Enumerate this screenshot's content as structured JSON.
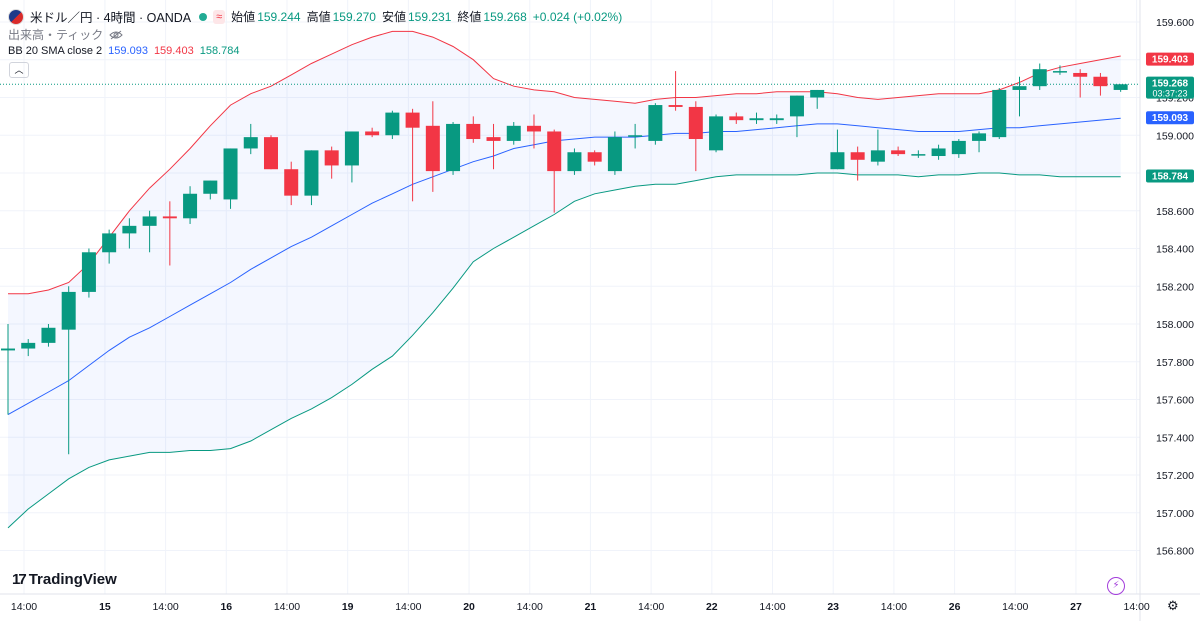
{
  "header": {
    "symbol": "米ドル／円 · 4時間 · OANDA",
    "open_label": "始値",
    "open": "159.244",
    "high_label": "高値",
    "high": "159.270",
    "low_label": "安値",
    "low": "159.231",
    "close_label": "終値",
    "close": "159.268",
    "change": "+0.024 (+0.02%)"
  },
  "volume_label": "出来高・ティック",
  "indicator": {
    "name": "BB 20 SMA close 2",
    "basis": "159.093",
    "upper": "159.403",
    "lower": "158.784"
  },
  "price_tags": {
    "upper": "159.403",
    "last": "159.268",
    "countdown": "03:37:23",
    "basis": "159.093",
    "lower": "158.784"
  },
  "branding": "TradingView",
  "colors": {
    "up": "#089981",
    "down": "#f23645",
    "upper": "#f23645",
    "basis": "#2962ff",
    "lower": "#089981"
  },
  "chart_data": {
    "type": "candlestick",
    "ylim": [
      156.75,
      159.7
    ],
    "yticks": [
      "156.800",
      "157.000",
      "157.200",
      "157.400",
      "157.600",
      "157.800",
      "158.000",
      "158.200",
      "158.400",
      "158.600",
      "158.800",
      "159.000",
      "159.200",
      "159.400",
      "159.600"
    ],
    "xticks": [
      {
        "label": "14:00",
        "i": 0
      },
      {
        "label": "15",
        "i": 4
      },
      {
        "label": "14:00",
        "i": 7
      },
      {
        "label": "16",
        "i": 10
      },
      {
        "label": "14:00",
        "i": 13
      },
      {
        "label": "19",
        "i": 16
      },
      {
        "label": "14:00",
        "i": 19
      },
      {
        "label": "20",
        "i": 22
      },
      {
        "label": "14:00",
        "i": 25
      },
      {
        "label": "21",
        "i": 28
      },
      {
        "label": "14:00",
        "i": 31
      },
      {
        "label": "22",
        "i": 34
      },
      {
        "label": "14:00",
        "i": 37
      },
      {
        "label": "23",
        "i": 40
      },
      {
        "label": "14:00",
        "i": 43
      },
      {
        "label": "26",
        "i": 46
      },
      {
        "label": "14:00",
        "i": 49
      },
      {
        "label": "27",
        "i": 52
      },
      {
        "label": "14:00",
        "i": 55
      }
    ],
    "candles": [
      {
        "o": 157.86,
        "h": 158.0,
        "l": 157.52,
        "c": 157.87
      },
      {
        "o": 157.87,
        "h": 157.92,
        "l": 157.83,
        "c": 157.9
      },
      {
        "o": 157.9,
        "h": 158.0,
        "l": 157.88,
        "c": 157.98
      },
      {
        "o": 157.97,
        "h": 158.2,
        "l": 157.31,
        "c": 158.17
      },
      {
        "o": 158.17,
        "h": 158.4,
        "l": 158.14,
        "c": 158.38
      },
      {
        "o": 158.38,
        "h": 158.5,
        "l": 158.32,
        "c": 158.48
      },
      {
        "o": 158.48,
        "h": 158.56,
        "l": 158.4,
        "c": 158.52
      },
      {
        "o": 158.52,
        "h": 158.6,
        "l": 158.38,
        "c": 158.57
      },
      {
        "o": 158.57,
        "h": 158.65,
        "l": 158.31,
        "c": 158.56
      },
      {
        "o": 158.56,
        "h": 158.73,
        "l": 158.53,
        "c": 158.69
      },
      {
        "o": 158.69,
        "h": 158.76,
        "l": 158.66,
        "c": 158.76
      },
      {
        "o": 158.66,
        "h": 158.93,
        "l": 158.61,
        "c": 158.93
      },
      {
        "o": 158.93,
        "h": 159.06,
        "l": 158.9,
        "c": 158.99
      },
      {
        "o": 158.99,
        "h": 159.0,
        "l": 158.82,
        "c": 158.82
      },
      {
        "o": 158.82,
        "h": 158.86,
        "l": 158.63,
        "c": 158.68
      },
      {
        "o": 158.68,
        "h": 158.92,
        "l": 158.63,
        "c": 158.92
      },
      {
        "o": 158.92,
        "h": 158.94,
        "l": 158.77,
        "c": 158.84
      },
      {
        "o": 158.84,
        "h": 159.02,
        "l": 158.75,
        "c": 159.02
      },
      {
        "o": 159.02,
        "h": 159.04,
        "l": 158.99,
        "c": 159.0
      },
      {
        "o": 159.0,
        "h": 159.13,
        "l": 158.98,
        "c": 159.12
      },
      {
        "o": 159.12,
        "h": 159.14,
        "l": 158.65,
        "c": 159.04
      },
      {
        "o": 159.05,
        "h": 159.18,
        "l": 158.7,
        "c": 158.81
      },
      {
        "o": 158.81,
        "h": 159.07,
        "l": 158.79,
        "c": 159.06
      },
      {
        "o": 159.06,
        "h": 159.1,
        "l": 158.96,
        "c": 158.98
      },
      {
        "o": 158.99,
        "h": 159.06,
        "l": 158.82,
        "c": 158.97
      },
      {
        "o": 158.97,
        "h": 159.07,
        "l": 158.95,
        "c": 159.05
      },
      {
        "o": 159.05,
        "h": 159.11,
        "l": 158.93,
        "c": 159.02
      },
      {
        "o": 159.02,
        "h": 159.03,
        "l": 158.59,
        "c": 158.81
      },
      {
        "o": 158.81,
        "h": 158.93,
        "l": 158.79,
        "c": 158.91
      },
      {
        "o": 158.91,
        "h": 158.92,
        "l": 158.84,
        "c": 158.86
      },
      {
        "o": 158.81,
        "h": 159.02,
        "l": 158.79,
        "c": 158.99
      },
      {
        "o": 159.0,
        "h": 159.06,
        "l": 158.93,
        "c": 159.0
      },
      {
        "o": 158.97,
        "h": 159.17,
        "l": 158.95,
        "c": 159.16
      },
      {
        "o": 159.16,
        "h": 159.34,
        "l": 159.13,
        "c": 159.15
      },
      {
        "o": 159.15,
        "h": 159.18,
        "l": 158.81,
        "c": 158.98
      },
      {
        "o": 158.92,
        "h": 159.11,
        "l": 158.91,
        "c": 159.1
      },
      {
        "o": 159.1,
        "h": 159.12,
        "l": 159.06,
        "c": 159.08
      },
      {
        "o": 159.08,
        "h": 159.12,
        "l": 159.06,
        "c": 159.09
      },
      {
        "o": 159.08,
        "h": 159.11,
        "l": 159.06,
        "c": 159.09
      },
      {
        "o": 159.1,
        "h": 159.21,
        "l": 158.99,
        "c": 159.21
      },
      {
        "o": 159.2,
        "h": 159.24,
        "l": 159.14,
        "c": 159.24
      },
      {
        "o": 158.82,
        "h": 159.03,
        "l": 158.82,
        "c": 158.91
      },
      {
        "o": 158.91,
        "h": 158.94,
        "l": 158.76,
        "c": 158.87
      },
      {
        "o": 158.86,
        "h": 159.03,
        "l": 158.84,
        "c": 158.92
      },
      {
        "o": 158.92,
        "h": 158.94,
        "l": 158.89,
        "c": 158.9
      },
      {
        "o": 158.9,
        "h": 158.92,
        "l": 158.88,
        "c": 158.9
      },
      {
        "o": 158.89,
        "h": 158.95,
        "l": 158.87,
        "c": 158.93
      },
      {
        "o": 158.9,
        "h": 158.98,
        "l": 158.88,
        "c": 158.97
      },
      {
        "o": 158.97,
        "h": 159.02,
        "l": 158.91,
        "c": 159.01
      },
      {
        "o": 158.99,
        "h": 159.25,
        "l": 158.98,
        "c": 159.24
      },
      {
        "o": 159.24,
        "h": 159.31,
        "l": 159.1,
        "c": 159.26
      },
      {
        "o": 159.26,
        "h": 159.38,
        "l": 159.24,
        "c": 159.35
      },
      {
        "o": 159.34,
        "h": 159.37,
        "l": 159.32,
        "c": 159.34
      },
      {
        "o": 159.33,
        "h": 159.35,
        "l": 159.2,
        "c": 159.31
      },
      {
        "o": 159.31,
        "h": 159.33,
        "l": 159.21,
        "c": 159.26
      },
      {
        "o": 159.24,
        "h": 159.27,
        "l": 159.23,
        "c": 159.27
      }
    ],
    "bb_upper": [
      158.16,
      158.16,
      158.18,
      158.22,
      158.32,
      158.46,
      158.6,
      158.72,
      158.82,
      158.93,
      159.05,
      159.16,
      159.22,
      159.26,
      159.32,
      159.38,
      159.43,
      159.48,
      159.52,
      159.55,
      159.55,
      159.52,
      159.47,
      159.4,
      159.3,
      159.26,
      159.24,
      159.23,
      159.2,
      159.19,
      159.18,
      159.17,
      159.19,
      159.2,
      159.2,
      159.21,
      159.22,
      159.22,
      159.23,
      159.23,
      159.23,
      159.22,
      159.2,
      159.19,
      159.2,
      159.21,
      159.22,
      159.22,
      159.22,
      159.24,
      159.28,
      159.33,
      159.36,
      159.38,
      159.4,
      159.42
    ],
    "bb_basis": [
      157.52,
      157.58,
      157.64,
      157.7,
      157.78,
      157.86,
      157.93,
      157.98,
      158.04,
      158.1,
      158.16,
      158.22,
      158.29,
      158.35,
      158.41,
      158.46,
      158.52,
      158.58,
      158.64,
      158.69,
      158.74,
      158.78,
      158.82,
      158.86,
      158.89,
      158.93,
      158.95,
      158.97,
      158.98,
      158.99,
      158.99,
      158.99,
      159.0,
      159.01,
      159.01,
      159.02,
      159.02,
      159.03,
      159.04,
      159.05,
      159.06,
      159.06,
      159.05,
      159.04,
      159.03,
      159.02,
      159.02,
      159.02,
      159.03,
      159.04,
      159.04,
      159.05,
      159.06,
      159.07,
      159.08,
      159.09
    ],
    "bb_lower": [
      156.92,
      157.02,
      157.1,
      157.18,
      157.24,
      157.28,
      157.3,
      157.32,
      157.32,
      157.33,
      157.33,
      157.34,
      157.38,
      157.44,
      157.5,
      157.55,
      157.61,
      157.68,
      157.76,
      157.83,
      157.94,
      158.06,
      158.19,
      158.33,
      158.4,
      158.46,
      158.52,
      158.58,
      158.65,
      158.69,
      158.71,
      158.73,
      158.74,
      158.74,
      158.76,
      158.78,
      158.79,
      158.79,
      158.79,
      158.79,
      158.8,
      158.8,
      158.79,
      158.79,
      158.79,
      158.78,
      158.79,
      158.79,
      158.8,
      158.8,
      158.79,
      158.79,
      158.78,
      158.78,
      158.78,
      158.78
    ]
  }
}
